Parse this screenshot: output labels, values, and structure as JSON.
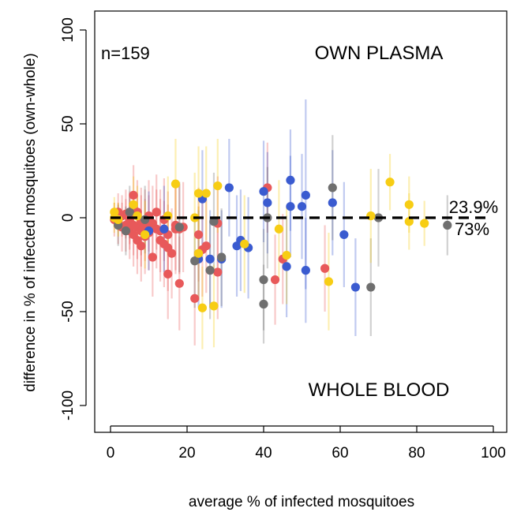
{
  "chart_data": {
    "type": "scatter",
    "title": "",
    "xlabel": "average % of infected mosquitoes",
    "ylabel": "difference in % of infected mosquitoes (own-whole)",
    "xlim": [
      -2,
      100
    ],
    "ylim": [
      -110,
      110
    ],
    "x_ticks": [
      0,
      20,
      40,
      60,
      80,
      100
    ],
    "y_ticks": [
      -100,
      -50,
      0,
      50,
      100
    ],
    "x_tick_labels": [
      "0",
      "20",
      "40",
      "60",
      "80",
      "100"
    ],
    "y_tick_labels": [
      "-100",
      "-50",
      "0",
      "50",
      "100"
    ],
    "grid": false,
    "legend": "none",
    "annotations": {
      "n": "n=159",
      "top_region": "OWN PLASMA",
      "bottom_region": "WHOLE BLOOD",
      "mean_label": "23.9%",
      "ratio_label": "73%"
    },
    "reference_line": {
      "type": "mean-difference",
      "y": 0,
      "x_range": [
        0,
        98
      ],
      "style": "dashed"
    },
    "colors": {
      "red": "#e8595a",
      "blue": "#3a5bd0",
      "gray": "#6f6f6f",
      "yellow": "#f7cd14"
    },
    "series": [
      {
        "color_key": "red",
        "points": [
          {
            "x": 1,
            "y": -1,
            "lo": -10,
            "hi": 8
          },
          {
            "x": 2,
            "y": 3,
            "lo": -7,
            "hi": 13
          },
          {
            "x": 2,
            "y": -3,
            "lo": -14,
            "hi": 8
          },
          {
            "x": 3,
            "y": 1,
            "lo": -10,
            "hi": 12
          },
          {
            "x": 3,
            "y": -5,
            "lo": -18,
            "hi": 8
          },
          {
            "x": 4,
            "y": 2,
            "lo": -11,
            "hi": 15
          },
          {
            "x": 4,
            "y": -4,
            "lo": -18,
            "hi": 10
          },
          {
            "x": 5,
            "y": 0,
            "lo": -14,
            "hi": 14
          },
          {
            "x": 5,
            "y": -2,
            "lo": -17,
            "hi": 13
          },
          {
            "x": 5,
            "y": -7,
            "lo": -22,
            "hi": 8
          },
          {
            "x": 6,
            "y": 12,
            "lo": -4,
            "hi": 28
          },
          {
            "x": 6,
            "y": -4,
            "lo": -20,
            "hi": 12
          },
          {
            "x": 6,
            "y": -9,
            "lo": -26,
            "hi": 8
          },
          {
            "x": 7,
            "y": 3,
            "lo": -14,
            "hi": 20
          },
          {
            "x": 7,
            "y": -5,
            "lo": -22,
            "hi": 12
          },
          {
            "x": 7,
            "y": -12,
            "lo": -30,
            "hi": 6
          },
          {
            "x": 8,
            "y": -2,
            "lo": -20,
            "hi": 16
          },
          {
            "x": 8,
            "y": -7,
            "lo": -26,
            "hi": 12
          },
          {
            "x": 8,
            "y": -15,
            "lo": -34,
            "hi": 4
          },
          {
            "x": 9,
            "y": -4,
            "lo": -23,
            "hi": 15
          },
          {
            "x": 9,
            "y": -10,
            "lo": -30,
            "hi": 10
          },
          {
            "x": 10,
            "y": 1,
            "lo": -18,
            "hi": 20
          },
          {
            "x": 10,
            "y": -8,
            "lo": -28,
            "hi": 12
          },
          {
            "x": 11,
            "y": -21,
            "lo": -42,
            "hi": 0
          },
          {
            "x": 11,
            "y": -3,
            "lo": -23,
            "hi": 17
          },
          {
            "x": 12,
            "y": 3,
            "lo": -17,
            "hi": 23
          },
          {
            "x": 12,
            "y": -6,
            "lo": -27,
            "hi": 15
          },
          {
            "x": 13,
            "y": -12,
            "lo": -34,
            "hi": 10
          },
          {
            "x": 13,
            "y": -7,
            "lo": -29,
            "hi": 15
          },
          {
            "x": 14,
            "y": -1,
            "lo": -23,
            "hi": 21
          },
          {
            "x": 14,
            "y": -14,
            "lo": -37,
            "hi": 9
          },
          {
            "x": 15,
            "y": -9,
            "lo": -32,
            "hi": 14
          },
          {
            "x": 15,
            "y": -16,
            "lo": -39,
            "hi": 7
          },
          {
            "x": 15,
            "y": -30,
            "lo": -54,
            "hi": -6
          },
          {
            "x": 16,
            "y": -19,
            "lo": -43,
            "hi": 5
          },
          {
            "x": 17,
            "y": -4,
            "lo": -28,
            "hi": 20
          },
          {
            "x": 17,
            "y": -6,
            "lo": -30,
            "hi": 18
          },
          {
            "x": 18,
            "y": -35,
            "lo": -60,
            "hi": -10
          },
          {
            "x": 18,
            "y": -6,
            "lo": -30,
            "hi": 18
          },
          {
            "x": 19,
            "y": -5,
            "lo": -29,
            "hi": 19
          },
          {
            "x": 22,
            "y": -43,
            "lo": -68,
            "hi": -18
          },
          {
            "x": 23,
            "y": -9,
            "lo": -34,
            "hi": 16
          },
          {
            "x": 23,
            "y": -19,
            "lo": -44,
            "hi": 6
          },
          {
            "x": 24,
            "y": -17,
            "lo": -42,
            "hi": 8
          },
          {
            "x": 25,
            "y": -15,
            "lo": -40,
            "hi": 10
          },
          {
            "x": 28,
            "y": -3,
            "lo": -28,
            "hi": 22
          },
          {
            "x": 28,
            "y": -29,
            "lo": -54,
            "hi": -4
          },
          {
            "x": 41,
            "y": 16,
            "lo": -8,
            "hi": 40
          },
          {
            "x": 43,
            "y": -33,
            "lo": -57,
            "hi": -9
          },
          {
            "x": 45,
            "y": -22,
            "lo": -46,
            "hi": 2
          },
          {
            "x": 56,
            "y": -27,
            "lo": -50,
            "hi": -4
          }
        ]
      },
      {
        "color_key": "blue",
        "points": [
          {
            "x": 10,
            "y": -7,
            "lo": -28,
            "hi": 14
          },
          {
            "x": 14,
            "y": -6,
            "lo": -29,
            "hi": 17
          },
          {
            "x": 23,
            "y": -22,
            "lo": -48,
            "hi": 4
          },
          {
            "x": 24,
            "y": 10,
            "lo": -16,
            "hi": 36
          },
          {
            "x": 26,
            "y": -22,
            "lo": -48,
            "hi": 4
          },
          {
            "x": 29,
            "y": -22,
            "lo": -48,
            "hi": 4
          },
          {
            "x": 31,
            "y": 16,
            "lo": -10,
            "hi": 42
          },
          {
            "x": 33,
            "y": -15,
            "lo": -42,
            "hi": 12
          },
          {
            "x": 34,
            "y": -12,
            "lo": -39,
            "hi": 15
          },
          {
            "x": 36,
            "y": -16,
            "lo": -43,
            "hi": 11
          },
          {
            "x": 40,
            "y": 14,
            "lo": -13,
            "hi": 41
          },
          {
            "x": 41,
            "y": 8,
            "lo": -19,
            "hi": 35
          },
          {
            "x": 46,
            "y": -26,
            "lo": -53,
            "hi": 1
          },
          {
            "x": 47,
            "y": 20,
            "lo": -7,
            "hi": 47
          },
          {
            "x": 47,
            "y": 6,
            "lo": -21,
            "hi": 33
          },
          {
            "x": 50,
            "y": 6,
            "lo": -22,
            "hi": 34
          },
          {
            "x": 51,
            "y": -28,
            "lo": -56,
            "hi": 0
          },
          {
            "x": 51,
            "y": 12,
            "lo": -38,
            "hi": 63
          },
          {
            "x": 58,
            "y": 8,
            "lo": -20,
            "hi": 36
          },
          {
            "x": 61,
            "y": -9,
            "lo": -37,
            "hi": 19
          },
          {
            "x": 64,
            "y": -37,
            "lo": -63,
            "hi": -11
          }
        ]
      },
      {
        "color_key": "gray",
        "points": [
          {
            "x": 2,
            "y": -4,
            "lo": -15,
            "hi": 7
          },
          {
            "x": 4,
            "y": -7,
            "lo": -20,
            "hi": 6
          },
          {
            "x": 5,
            "y": 3,
            "lo": -11,
            "hi": 17
          },
          {
            "x": 9,
            "y": -1,
            "lo": -19,
            "hi": 17
          },
          {
            "x": 18,
            "y": -5,
            "lo": -29,
            "hi": 19
          },
          {
            "x": 22,
            "y": -23,
            "lo": -48,
            "hi": 2
          },
          {
            "x": 26,
            "y": -28,
            "lo": -54,
            "hi": -2
          },
          {
            "x": 27,
            "y": -2,
            "lo": -28,
            "hi": 24
          },
          {
            "x": 29,
            "y": -21,
            "lo": -47,
            "hi": 5
          },
          {
            "x": 40,
            "y": -33,
            "lo": -60,
            "hi": -6
          },
          {
            "x": 40,
            "y": -46,
            "lo": -67,
            "hi": -25
          },
          {
            "x": 41,
            "y": 0,
            "lo": -27,
            "hi": 27
          },
          {
            "x": 58,
            "y": 16,
            "lo": -12,
            "hi": 44
          },
          {
            "x": 68,
            "y": -37,
            "lo": -63,
            "hi": -11
          },
          {
            "x": 70,
            "y": 0,
            "lo": -26,
            "hi": 26
          },
          {
            "x": 88,
            "y": -4,
            "lo": -20,
            "hi": 12
          }
        ]
      },
      {
        "color_key": "yellow",
        "points": [
          {
            "x": 1,
            "y": 3,
            "lo": -5,
            "hi": 11
          },
          {
            "x": 1,
            "y": 0,
            "lo": -8,
            "hi": 8
          },
          {
            "x": 2,
            "y": -1,
            "lo": -10,
            "hi": 8
          },
          {
            "x": 6,
            "y": 7,
            "lo": -8,
            "hi": 22
          },
          {
            "x": 7,
            "y": 1,
            "lo": -15,
            "hi": 17
          },
          {
            "x": 9,
            "y": -9,
            "lo": -27,
            "hi": 9
          },
          {
            "x": 15,
            "y": 1,
            "lo": -20,
            "hi": 22
          },
          {
            "x": 17,
            "y": 18,
            "lo": -6,
            "hi": 42
          },
          {
            "x": 22,
            "y": 0,
            "lo": -24,
            "hi": 24
          },
          {
            "x": 23,
            "y": 13,
            "lo": -12,
            "hi": 38
          },
          {
            "x": 23,
            "y": -19,
            "lo": -44,
            "hi": 6
          },
          {
            "x": 24,
            "y": -48,
            "lo": -70,
            "hi": -26
          },
          {
            "x": 25,
            "y": 13,
            "lo": -12,
            "hi": 38
          },
          {
            "x": 27,
            "y": -47,
            "lo": -69,
            "hi": -25
          },
          {
            "x": 28,
            "y": 17,
            "lo": -8,
            "hi": 42
          },
          {
            "x": 35,
            "y": -14,
            "lo": -40,
            "hi": 12
          },
          {
            "x": 44,
            "y": -6,
            "lo": -32,
            "hi": 20
          },
          {
            "x": 46,
            "y": -20,
            "lo": -46,
            "hi": 6
          },
          {
            "x": 57,
            "y": -34,
            "lo": -60,
            "hi": -8
          },
          {
            "x": 68,
            "y": 1,
            "lo": -24,
            "hi": 26
          },
          {
            "x": 73,
            "y": 19,
            "lo": 4,
            "hi": 34
          },
          {
            "x": 78,
            "y": 7,
            "lo": -8,
            "hi": 22
          },
          {
            "x": 78,
            "y": -2,
            "lo": -17,
            "hi": 13
          },
          {
            "x": 82,
            "y": -3,
            "lo": -15,
            "hi": 9
          }
        ]
      }
    ]
  }
}
